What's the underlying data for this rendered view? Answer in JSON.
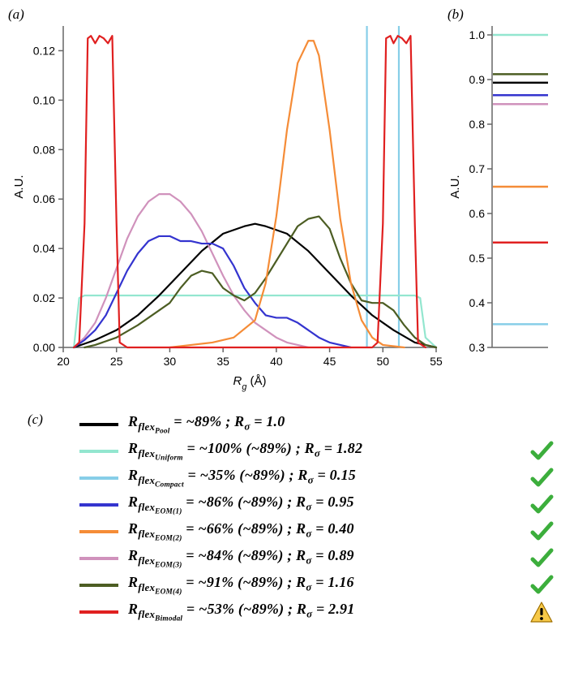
{
  "panel_a": {
    "label": "(a)",
    "xlabel": "R_g (Å)",
    "ylabel": "A.U.",
    "xlim": [
      20,
      55
    ],
    "ylim": [
      0.0,
      0.13
    ],
    "xticks": [
      20,
      25,
      30,
      35,
      40,
      45,
      50,
      55
    ],
    "yticks": [
      0.0,
      0.02,
      0.04,
      0.06,
      0.08,
      0.1,
      0.12
    ],
    "axis_color": "#666666",
    "tick_fontsize": 14,
    "label_fontsize": 15,
    "line_width": 2.2,
    "background": "#ffffff",
    "vlines": {
      "x": [
        48.5,
        51.5
      ],
      "color": "#87cee8",
      "width": 2.2
    },
    "series": {
      "pool": {
        "color": "#000000",
        "pts": [
          [
            21,
            0
          ],
          [
            23,
            0.003
          ],
          [
            25,
            0.007
          ],
          [
            27,
            0.013
          ],
          [
            29,
            0.021
          ],
          [
            31,
            0.03
          ],
          [
            33,
            0.039
          ],
          [
            35,
            0.046
          ],
          [
            37,
            0.049
          ],
          [
            38,
            0.05
          ],
          [
            39,
            0.049
          ],
          [
            41,
            0.046
          ],
          [
            43,
            0.039
          ],
          [
            45,
            0.03
          ],
          [
            47,
            0.021
          ],
          [
            49,
            0.013
          ],
          [
            51,
            0.007
          ],
          [
            53,
            0.002
          ],
          [
            55,
            0
          ]
        ]
      },
      "uniform": {
        "color": "#93e6cf",
        "pts": [
          [
            21,
            0
          ],
          [
            21.5,
            0.02
          ],
          [
            22,
            0.021
          ],
          [
            53,
            0.021
          ],
          [
            53.5,
            0.02
          ],
          [
            54,
            0.004
          ],
          [
            55,
            0
          ]
        ]
      },
      "eom1": {
        "color": "#3434cf",
        "pts": [
          [
            21,
            0
          ],
          [
            22,
            0.003
          ],
          [
            23,
            0.007
          ],
          [
            24,
            0.013
          ],
          [
            25,
            0.022
          ],
          [
            26,
            0.031
          ],
          [
            27,
            0.038
          ],
          [
            28,
            0.043
          ],
          [
            29,
            0.045
          ],
          [
            30,
            0.045
          ],
          [
            31,
            0.043
          ],
          [
            32,
            0.043
          ],
          [
            33,
            0.042
          ],
          [
            34,
            0.042
          ],
          [
            35,
            0.04
          ],
          [
            36,
            0.033
          ],
          [
            37,
            0.024
          ],
          [
            38,
            0.018
          ],
          [
            39,
            0.013
          ],
          [
            40,
            0.012
          ],
          [
            41,
            0.012
          ],
          [
            42,
            0.01
          ],
          [
            43,
            0.007
          ],
          [
            44,
            0.004
          ],
          [
            45,
            0.002
          ],
          [
            46,
            0.001
          ],
          [
            47,
            0
          ]
        ]
      },
      "eom2": {
        "color": "#f58c37",
        "pts": [
          [
            30,
            0
          ],
          [
            32,
            0.001
          ],
          [
            34,
            0.002
          ],
          [
            36,
            0.004
          ],
          [
            38,
            0.011
          ],
          [
            39,
            0.026
          ],
          [
            40,
            0.053
          ],
          [
            41,
            0.088
          ],
          [
            42,
            0.115
          ],
          [
            43,
            0.124
          ],
          [
            43.5,
            0.124
          ],
          [
            44,
            0.118
          ],
          [
            45,
            0.088
          ],
          [
            46,
            0.052
          ],
          [
            47,
            0.026
          ],
          [
            48,
            0.011
          ],
          [
            49,
            0.004
          ],
          [
            50,
            0.001
          ],
          [
            52,
            0
          ]
        ]
      },
      "eom3": {
        "color": "#d092bc",
        "pts": [
          [
            21,
            0
          ],
          [
            22,
            0.004
          ],
          [
            23,
            0.01
          ],
          [
            24,
            0.02
          ],
          [
            25,
            0.032
          ],
          [
            26,
            0.044
          ],
          [
            27,
            0.053
          ],
          [
            28,
            0.059
          ],
          [
            29,
            0.062
          ],
          [
            30,
            0.062
          ],
          [
            31,
            0.059
          ],
          [
            32,
            0.054
          ],
          [
            33,
            0.047
          ],
          [
            34,
            0.038
          ],
          [
            35,
            0.029
          ],
          [
            36,
            0.021
          ],
          [
            37,
            0.015
          ],
          [
            38,
            0.01
          ],
          [
            39,
            0.007
          ],
          [
            40,
            0.004
          ],
          [
            41,
            0.002
          ],
          [
            42,
            0.001
          ],
          [
            43,
            0
          ]
        ]
      },
      "eom4": {
        "color": "#4c5d23",
        "pts": [
          [
            22,
            0
          ],
          [
            23,
            0.001
          ],
          [
            25,
            0.004
          ],
          [
            27,
            0.009
          ],
          [
            29,
            0.015
          ],
          [
            30,
            0.018
          ],
          [
            31,
            0.024
          ],
          [
            32,
            0.029
          ],
          [
            33,
            0.031
          ],
          [
            34,
            0.03
          ],
          [
            35,
            0.024
          ],
          [
            36,
            0.021
          ],
          [
            37,
            0.019
          ],
          [
            38,
            0.022
          ],
          [
            39,
            0.028
          ],
          [
            40,
            0.035
          ],
          [
            41,
            0.042
          ],
          [
            42,
            0.049
          ],
          [
            43,
            0.052
          ],
          [
            44,
            0.053
          ],
          [
            45,
            0.048
          ],
          [
            46,
            0.036
          ],
          [
            47,
            0.026
          ],
          [
            48,
            0.019
          ],
          [
            49,
            0.018
          ],
          [
            50,
            0.018
          ],
          [
            51,
            0.015
          ],
          [
            52,
            0.009
          ],
          [
            53,
            0.004
          ],
          [
            54,
            0.001
          ],
          [
            55,
            0
          ]
        ]
      },
      "bimodal": {
        "color": "#e02020",
        "pts": [
          [
            21,
            0
          ],
          [
            21.5,
            0.002
          ],
          [
            22,
            0.05
          ],
          [
            22.3,
            0.125
          ],
          [
            22.6,
            0.126
          ],
          [
            23,
            0.123
          ],
          [
            23.4,
            0.126
          ],
          [
            23.8,
            0.125
          ],
          [
            24.2,
            0.123
          ],
          [
            24.6,
            0.126
          ],
          [
            25,
            0.05
          ],
          [
            25.3,
            0.002
          ],
          [
            26,
            0
          ],
          [
            49,
            0
          ],
          [
            49.5,
            0.002
          ],
          [
            50,
            0.05
          ],
          [
            50.3,
            0.125
          ],
          [
            50.7,
            0.126
          ],
          [
            51,
            0.123
          ],
          [
            51.4,
            0.126
          ],
          [
            51.8,
            0.125
          ],
          [
            52.2,
            0.123
          ],
          [
            52.6,
            0.126
          ],
          [
            53,
            0.05
          ],
          [
            53.3,
            0.002
          ],
          [
            54,
            0
          ]
        ]
      }
    }
  },
  "panel_b": {
    "label": "(b)",
    "ylabel": "A.U.",
    "ylim": [
      0.3,
      1.02
    ],
    "yticks": [
      0.3,
      0.4,
      0.5,
      0.6,
      0.7,
      0.8,
      0.9,
      1.0
    ],
    "axis_color": "#666666",
    "tick_fontsize": 14,
    "label_fontsize": 15,
    "line_width": 2.5,
    "bars": [
      {
        "name": "uniform",
        "y": 1.0,
        "color": "#93e6cf"
      },
      {
        "name": "eom4",
        "y": 0.912,
        "color": "#4c5d23"
      },
      {
        "name": "pool",
        "y": 0.893,
        "color": "#000000"
      },
      {
        "name": "eom1",
        "y": 0.865,
        "color": "#3434cf"
      },
      {
        "name": "eom3",
        "y": 0.845,
        "color": "#d092bc"
      },
      {
        "name": "eom2",
        "y": 0.66,
        "color": "#f58c37"
      },
      {
        "name": "bimodal",
        "y": 0.535,
        "color": "#e02020"
      },
      {
        "name": "compact",
        "y": 0.352,
        "color": "#87cee8"
      }
    ]
  },
  "panel_c": {
    "label": "(c)",
    "rows": [
      {
        "name": "pool",
        "color": "#000000",
        "sub": "Pool",
        "rflex": "~89%",
        "rsigma": "1.0",
        "paren": null,
        "mark": null
      },
      {
        "name": "uniform",
        "color": "#93e6cf",
        "sub": "Uniform",
        "rflex": "~100%",
        "rsigma": "1.82",
        "paren": "~89%",
        "mark": "check"
      },
      {
        "name": "compact",
        "color": "#87cee8",
        "sub": "Compact",
        "rflex": "~35%",
        "rsigma": "0.15",
        "paren": "~89%",
        "mark": "check"
      },
      {
        "name": "eom1",
        "color": "#3434cf",
        "sub": "EOM(1)",
        "rflex": "~86%",
        "rsigma": "0.95",
        "paren": "~89%",
        "mark": "check"
      },
      {
        "name": "eom2",
        "color": "#f58c37",
        "sub": "EOM(2)",
        "rflex": "~66%",
        "rsigma": "0.40",
        "paren": "~89%",
        "mark": "check"
      },
      {
        "name": "eom3",
        "color": "#d092bc",
        "sub": "EOM(3)",
        "rflex": "~84%",
        "rsigma": "0.89",
        "paren": "~89%",
        "mark": "check"
      },
      {
        "name": "eom4",
        "color": "#4c5d23",
        "sub": "EOM(4)",
        "rflex": "~91%",
        "rsigma": "1.16",
        "paren": "~89%",
        "mark": "check"
      },
      {
        "name": "bimodal",
        "color": "#e02020",
        "sub": "Bimodal",
        "rflex": "~53%",
        "rsigma": "2.91",
        "paren": "~89%",
        "mark": "warn"
      }
    ]
  }
}
